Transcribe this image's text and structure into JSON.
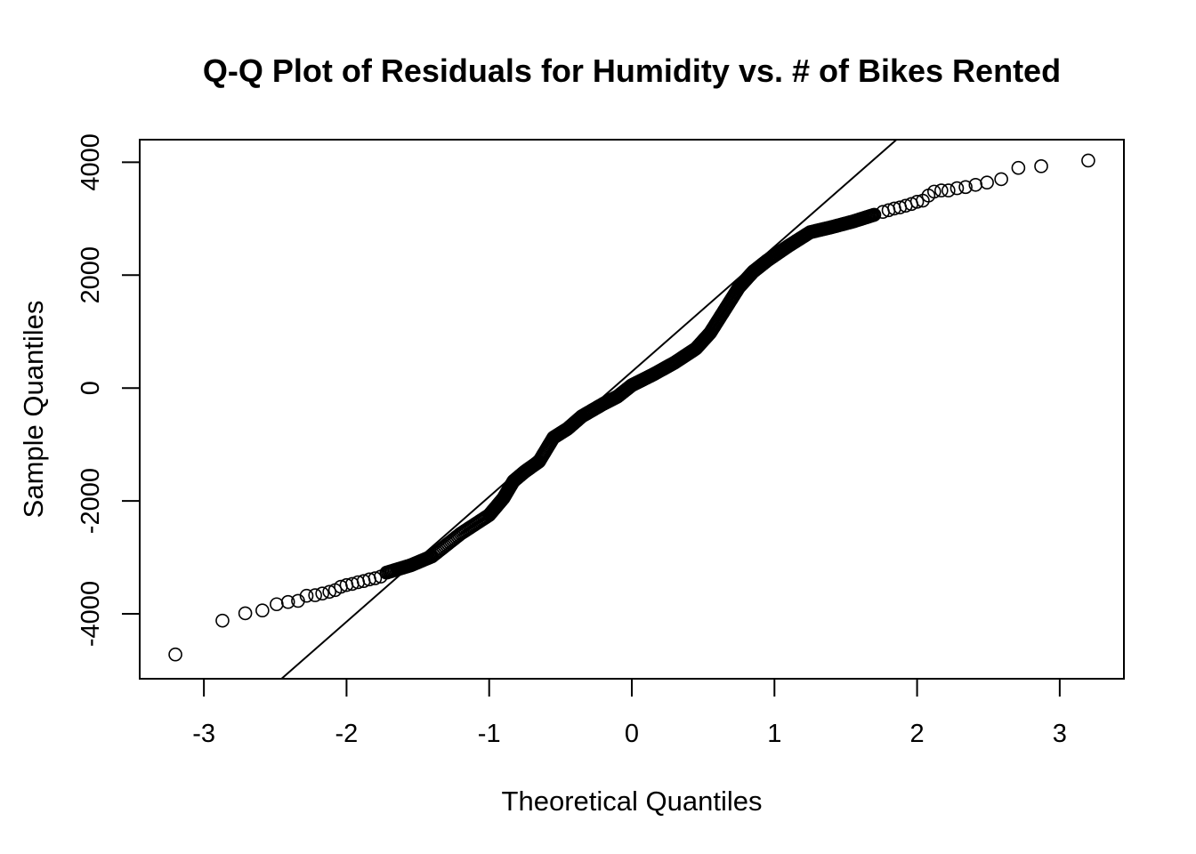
{
  "chart_data": {
    "type": "scatter",
    "title": "Q-Q Plot of Residuals for Humidity vs. # of Bikes Rented",
    "xlabel": "Theoretical Quantiles",
    "ylabel": "Sample Quantiles",
    "xlim": [
      -3.45,
      3.45
    ],
    "ylim": [
      -5150,
      4400
    ],
    "x_ticks": [
      -3,
      -2,
      -1,
      0,
      1,
      2,
      3
    ],
    "x_tick_labels": [
      "-3",
      "-2",
      "-1",
      "0",
      "1",
      "2",
      "3"
    ],
    "y_ticks": [
      -4000,
      -2000,
      0,
      2000,
      4000
    ],
    "y_tick_labels": [
      "-4000",
      "-2000",
      "0",
      "2000",
      "4000"
    ],
    "grid": false,
    "marker": "open-circle",
    "reference_line": {
      "slope": 2215,
      "intercept": 290
    },
    "quantile_curve": [
      [
        -1.72,
        -3270
      ],
      [
        -1.55,
        -3140
      ],
      [
        -1.4,
        -2980
      ],
      [
        -1.2,
        -2580
      ],
      [
        -1.0,
        -2250
      ],
      [
        -0.9,
        -1950
      ],
      [
        -0.83,
        -1650
      ],
      [
        -0.75,
        -1480
      ],
      [
        -0.65,
        -1300
      ],
      [
        -0.55,
        -880
      ],
      [
        -0.45,
        -720
      ],
      [
        -0.35,
        -500
      ],
      [
        -0.2,
        -280
      ],
      [
        -0.1,
        -150
      ],
      [
        0.0,
        50
      ],
      [
        0.15,
        240
      ],
      [
        0.3,
        450
      ],
      [
        0.45,
        700
      ],
      [
        0.55,
        980
      ],
      [
        0.65,
        1380
      ],
      [
        0.75,
        1780
      ],
      [
        0.85,
        2060
      ],
      [
        0.95,
        2260
      ],
      [
        1.1,
        2520
      ],
      [
        1.25,
        2760
      ],
      [
        1.4,
        2850
      ],
      [
        1.55,
        2950
      ],
      [
        1.7,
        3070
      ]
    ],
    "points": [
      [
        -3.2,
        -4720
      ],
      [
        -2.87,
        -4120
      ],
      [
        -2.71,
        -3990
      ],
      [
        -2.59,
        -3940
      ],
      [
        -2.49,
        -3830
      ],
      [
        -2.41,
        -3790
      ],
      [
        -2.34,
        -3770
      ],
      [
        -2.28,
        -3680
      ],
      [
        -2.22,
        -3670
      ],
      [
        -2.17,
        -3640
      ],
      [
        -2.12,
        -3610
      ],
      [
        -2.08,
        -3580
      ],
      [
        -2.04,
        -3520
      ],
      [
        -2.0,
        -3490
      ],
      [
        -1.96,
        -3470
      ],
      [
        -1.92,
        -3440
      ],
      [
        -1.88,
        -3420
      ],
      [
        -1.84,
        -3390
      ],
      [
        -1.8,
        -3370
      ],
      [
        -1.76,
        -3340
      ],
      [
        1.76,
        3120
      ],
      [
        1.8,
        3150
      ],
      [
        1.84,
        3180
      ],
      [
        1.88,
        3200
      ],
      [
        1.92,
        3230
      ],
      [
        1.96,
        3260
      ],
      [
        2.0,
        3300
      ],
      [
        2.04,
        3320
      ],
      [
        2.08,
        3410
      ],
      [
        2.12,
        3480
      ],
      [
        2.17,
        3500
      ],
      [
        2.22,
        3500
      ],
      [
        2.28,
        3540
      ],
      [
        2.34,
        3560
      ],
      [
        2.41,
        3600
      ],
      [
        2.49,
        3640
      ],
      [
        2.59,
        3700
      ],
      [
        2.71,
        3900
      ],
      [
        2.87,
        3930
      ],
      [
        3.2,
        4030
      ]
    ]
  }
}
